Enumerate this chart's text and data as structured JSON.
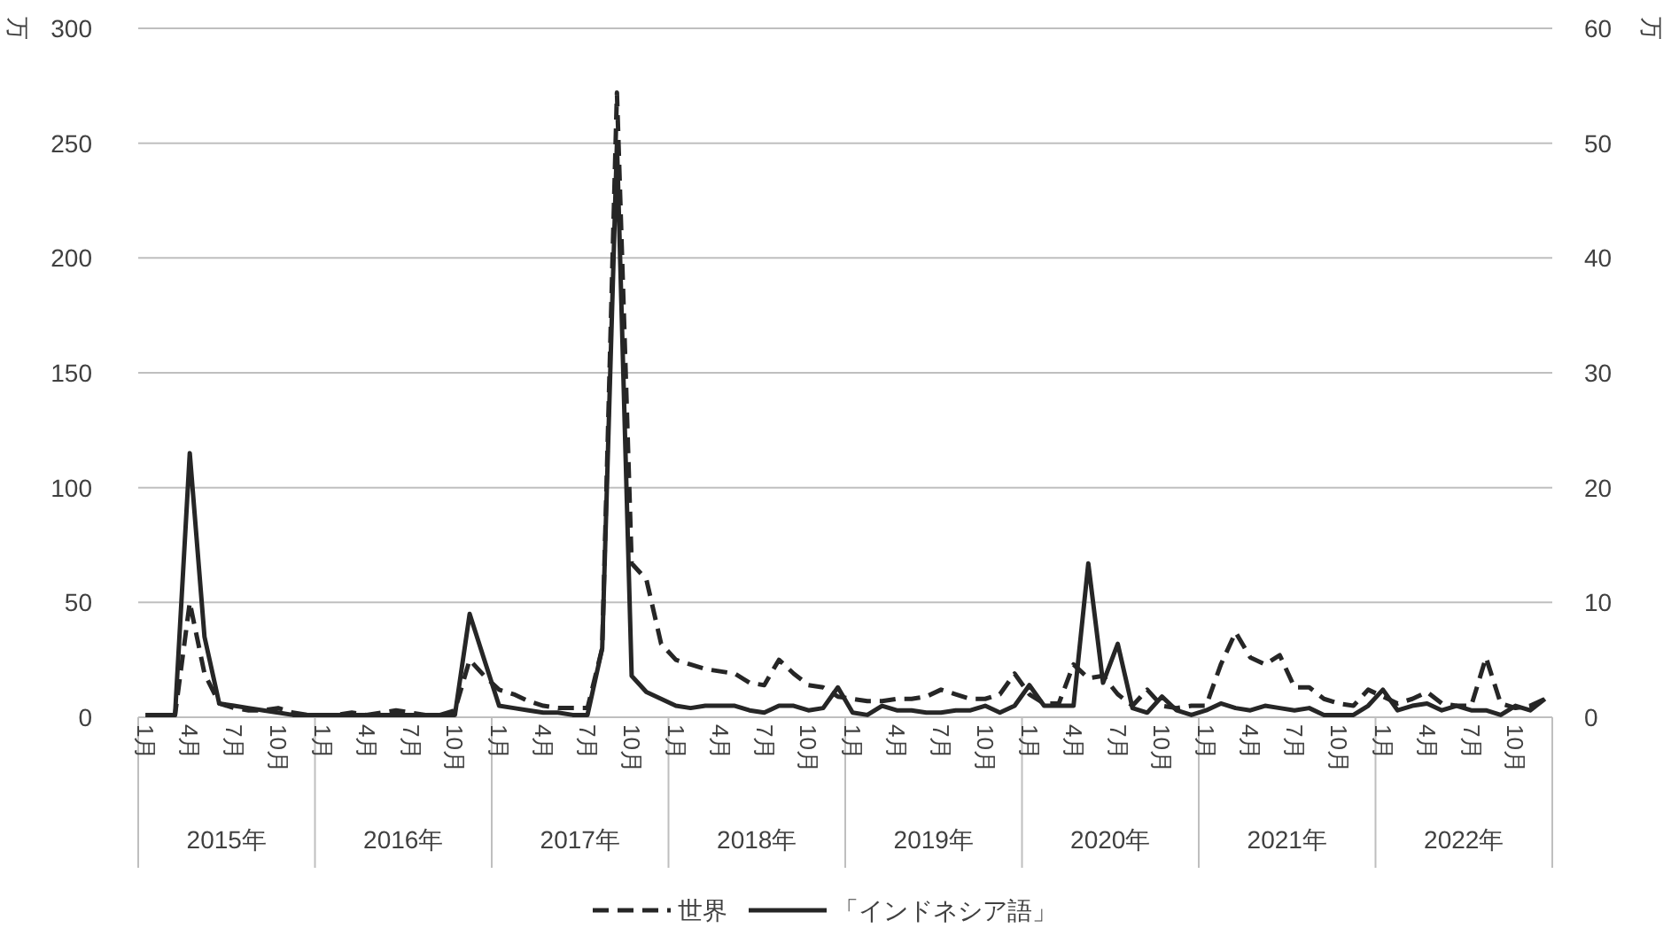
{
  "chart_data": {
    "type": "line",
    "categories": [
      "1月",
      null,
      null,
      "4月",
      null,
      null,
      "7月",
      null,
      null,
      "10月",
      null,
      null,
      "1月",
      null,
      null,
      "4月",
      null,
      null,
      "7月",
      null,
      null,
      "10月",
      null,
      null,
      "1月",
      null,
      null,
      "4月",
      null,
      null,
      "7月",
      null,
      null,
      "10月",
      null,
      null,
      "1月",
      null,
      null,
      "4月",
      null,
      null,
      "7月",
      null,
      null,
      "10月",
      null,
      null,
      "1月",
      null,
      null,
      "4月",
      null,
      null,
      "7月",
      null,
      null,
      "10月",
      null,
      null,
      "1月",
      null,
      null,
      "4月",
      null,
      null,
      "7月",
      null,
      null,
      "10月",
      null,
      null,
      "1月",
      null,
      null,
      "4月",
      null,
      null,
      "7月",
      null,
      null,
      "10月",
      null,
      null,
      "1月",
      null,
      null,
      "4月",
      null,
      null,
      "7月",
      null,
      null,
      "10月",
      null,
      null
    ],
    "annotations": [
      "2015年",
      "2016年",
      "2017年",
      "2018年",
      "2019年",
      "2020年",
      "2021年",
      "2022年"
    ],
    "series": [
      {
        "name": "世界",
        "color": "#262626",
        "line_style": "dashed",
        "values": [
          1,
          1,
          1,
          50,
          19,
          6,
          4,
          3,
          3,
          4,
          2,
          1,
          1,
          1,
          2,
          1,
          2,
          3,
          2,
          1,
          1,
          3,
          25,
          18,
          12,
          10,
          7,
          5,
          4,
          4,
          4,
          30,
          272,
          67,
          60,
          32,
          25,
          23,
          21,
          20,
          19,
          15,
          14,
          25,
          19,
          14,
          13,
          9,
          8,
          7,
          7,
          8,
          8,
          9,
          12,
          10,
          8,
          8,
          10,
          19,
          10,
          6,
          6,
          23,
          17,
          18,
          10,
          5,
          12,
          5,
          4,
          5,
          5,
          23,
          37,
          26,
          23,
          27,
          13,
          13,
          8,
          6,
          5,
          12,
          9,
          6,
          8,
          11,
          6,
          5,
          5,
          26,
          6,
          4,
          5,
          8
        ]
      },
      {
        "name": "「インドネシア語」",
        "color": "#262626",
        "line_style": "solid",
        "axis": "y2",
        "values": [
          0.2,
          0.2,
          0.2,
          23,
          7,
          1.2,
          1,
          0.8,
          0.6,
          0.4,
          0.2,
          0.2,
          0.2,
          0.2,
          0.2,
          0.2,
          0.2,
          0.2,
          0.2,
          0.2,
          0.2,
          0.2,
          9,
          5,
          1,
          0.8,
          0.6,
          0.4,
          0.4,
          0.2,
          0.2,
          6,
          50,
          3.6,
          2.2,
          1.6,
          1,
          0.8,
          1,
          1,
          1,
          0.6,
          0.4,
          1,
          1,
          0.6,
          0.8,
          2.6,
          0.4,
          0.2,
          1,
          0.6,
          0.6,
          0.4,
          0.4,
          0.6,
          0.6,
          1,
          0.4,
          1,
          2.8,
          1,
          1,
          1,
          13.4,
          3,
          6.4,
          0.8,
          0.4,
          1.8,
          0.6,
          0.2,
          0.6,
          1.2,
          0.8,
          0.6,
          1,
          0.8,
          0.6,
          0.8,
          0.2,
          0.2,
          0.2,
          1,
          2.4,
          0.6,
          1,
          1.2,
          0.6,
          1,
          0.6,
          0.6,
          0.2,
          1,
          0.6,
          1.6
        ]
      }
    ],
    "ylabel": "万",
    "y2label": "万",
    "ylim": [
      0,
      300
    ],
    "yticks": [
      0,
      50,
      100,
      150,
      200,
      250,
      300
    ],
    "y2lim": [
      0,
      60
    ],
    "y2ticks": [
      0,
      10,
      20,
      30,
      40,
      50,
      60
    ],
    "grid": "y",
    "legend": "bottom",
    "marker": "none"
  }
}
